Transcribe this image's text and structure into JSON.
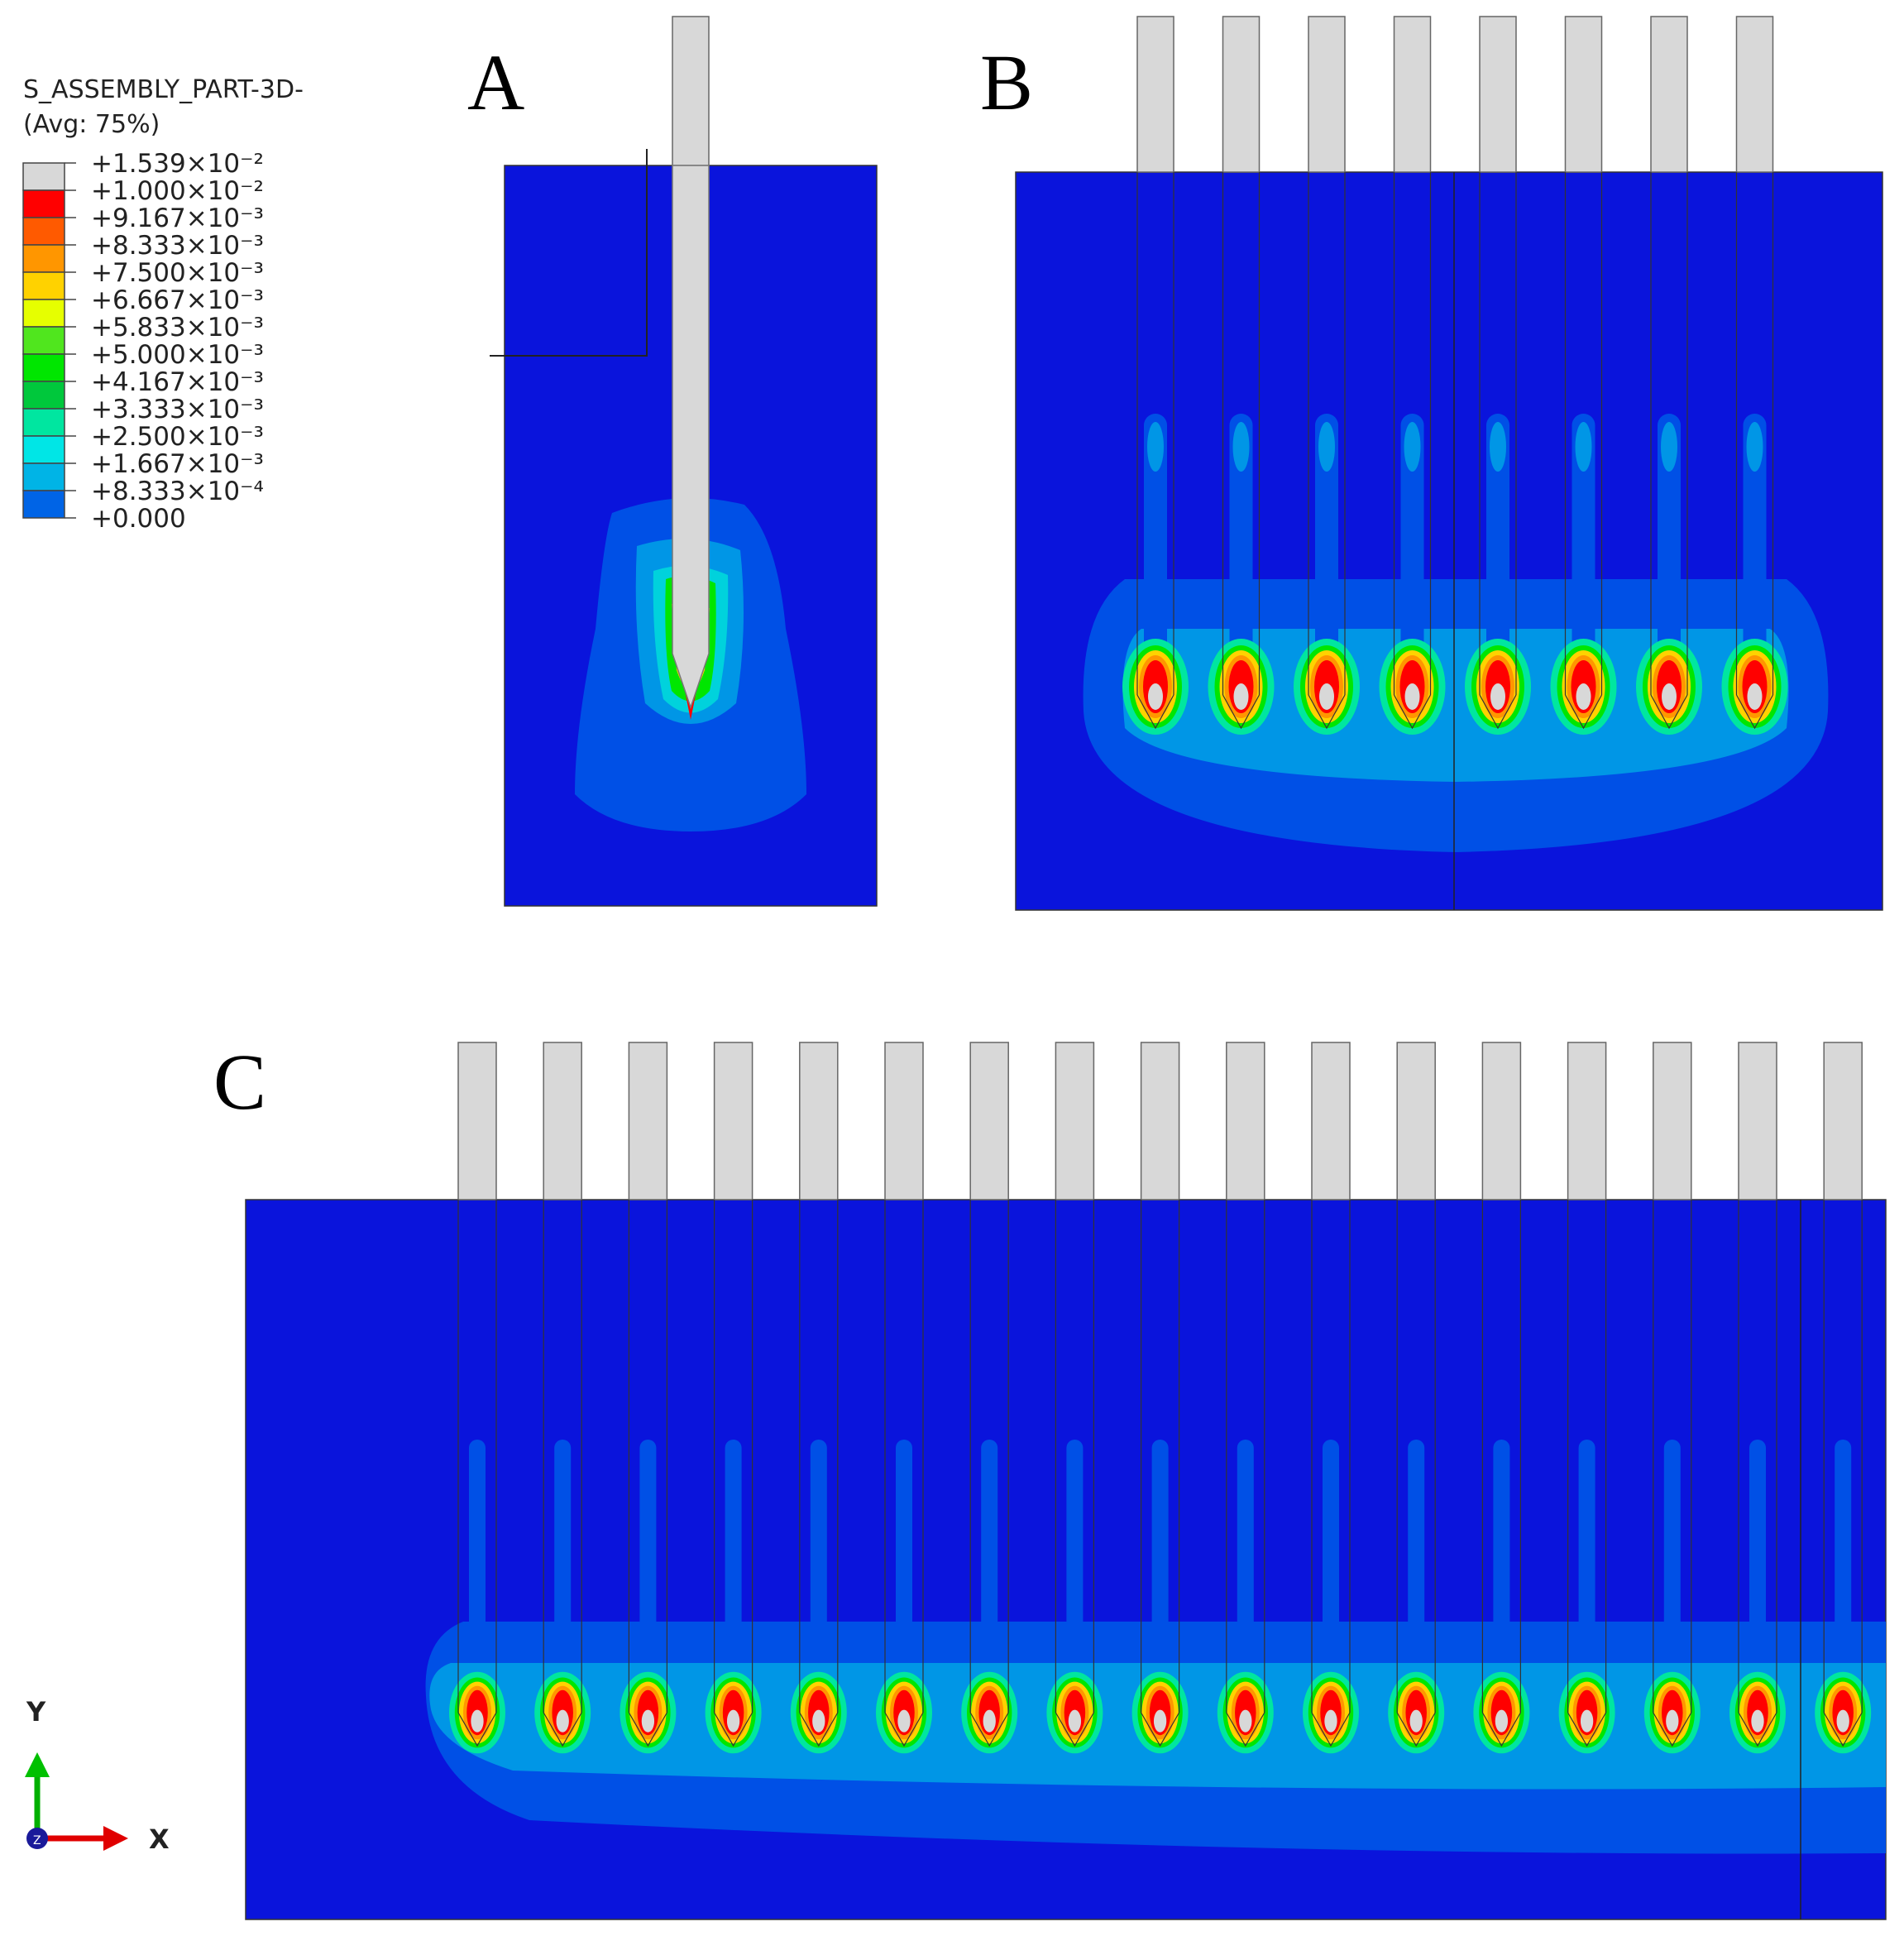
{
  "legend": {
    "title": "S_ASSEMBLY_PART-3D-",
    "subtitle": "(Avg: 75%)",
    "entries": [
      {
        "label": "+1.539×10⁻²",
        "color": "#d8d8d8"
      },
      {
        "label": "+1.000×10⁻²",
        "color": "#ff0000"
      },
      {
        "label": "+9.167×10⁻³",
        "color": "#ff5a00"
      },
      {
        "label": "+8.333×10⁻³",
        "color": "#ff9600"
      },
      {
        "label": "+7.500×10⁻³",
        "color": "#ffd200"
      },
      {
        "label": "+6.667×10⁻³",
        "color": "#e6ff00"
      },
      {
        "label": "+5.833×10⁻³",
        "color": "#50e61e"
      },
      {
        "label": "+5.000×10⁻³",
        "color": "#00e600"
      },
      {
        "label": "+4.167×10⁻³",
        "color": "#00c83c"
      },
      {
        "label": "+3.333×10⁻³",
        "color": "#00e6a0"
      },
      {
        "label": "+2.500×10⁻³",
        "color": "#00e6e6"
      },
      {
        "label": "+1.667×10⁻³",
        "color": "#00b4e6"
      },
      {
        "label": "+8.333×10⁻⁴",
        "color": "#0064e6"
      },
      {
        "label": "+0.000",
        "color": "#0a14dc"
      }
    ]
  },
  "panels": [
    {
      "letter": "A",
      "needle_count": 1
    },
    {
      "letter": "B",
      "needle_count": 8
    },
    {
      "letter": "C",
      "needle_count": 17
    }
  ],
  "triad": {
    "y_label": "Y",
    "x_label": "X",
    "z_label": "Z"
  },
  "colors": {
    "background_field": "#0a14dc",
    "halo_outer": "#0050e6",
    "halo_mid": "#0096e6",
    "halo_inner": "#00d2dc",
    "needle": "#d8d8d8",
    "hot": "#ff0000"
  }
}
